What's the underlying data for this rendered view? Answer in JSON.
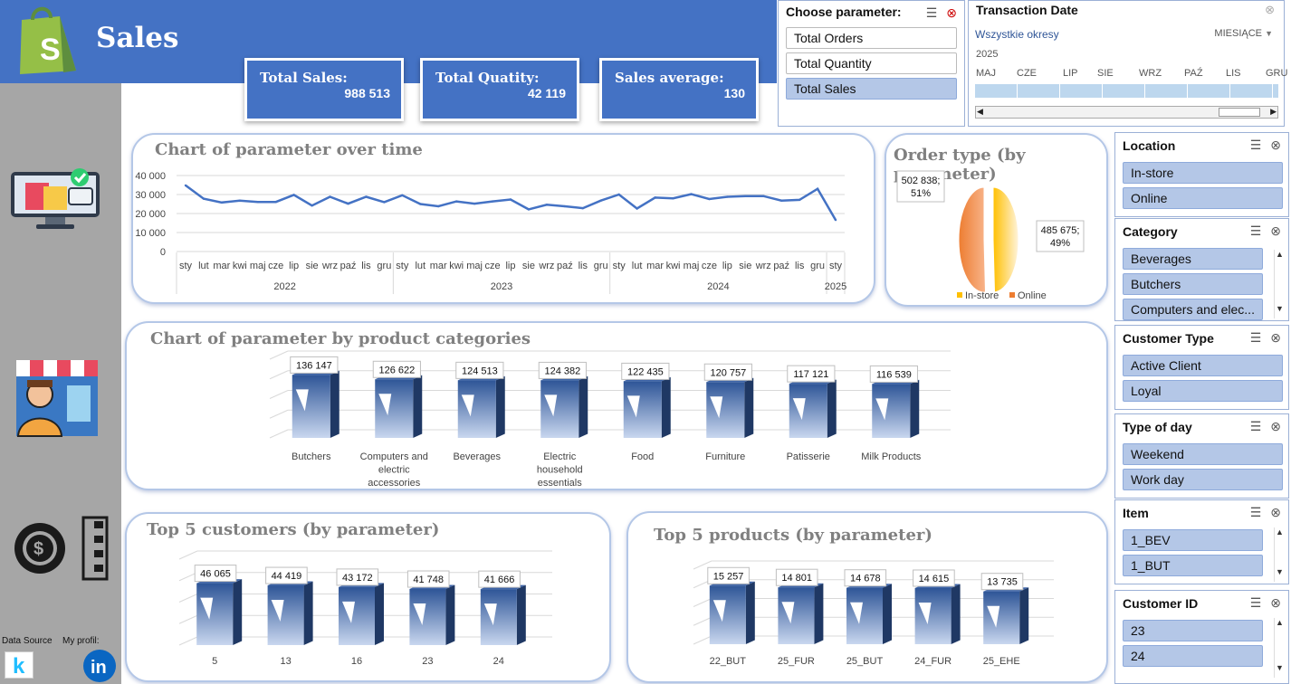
{
  "header": {
    "title": "Sales"
  },
  "kpis": [
    {
      "label": "Total Sales:",
      "value": "988 513"
    },
    {
      "label": "Total Quatity:",
      "value": "42 119"
    },
    {
      "label": "Sales average:",
      "value": "130"
    }
  ],
  "sidebar": {
    "data_source_label": "Data Source",
    "profile_label": "My profil:"
  },
  "param_slicer": {
    "title": "Choose parameter:",
    "items": [
      "Total Orders",
      "Total Quantity",
      "Total Sales"
    ],
    "selected": "Total Sales"
  },
  "timeline": {
    "title": "Transaction Date",
    "all_periods": "Wszystkie okresy",
    "level": "MIESIĄCE",
    "year": "2025",
    "months": [
      "MAJ",
      "CZE",
      "LIP",
      "SIE",
      "WRZ",
      "PAŹ",
      "LIS",
      "GRU"
    ]
  },
  "slicers": [
    {
      "title": "Location",
      "items": [
        "In-store",
        "Online"
      ]
    },
    {
      "title": "Category",
      "items": [
        "Beverages",
        "Butchers",
        "Computers and elec..."
      ]
    },
    {
      "title": "Customer Type",
      "items": [
        "Active Client",
        "Loyal"
      ]
    },
    {
      "title": "Type of day",
      "items": [
        "Weekend",
        "Work day"
      ]
    },
    {
      "title": "Item",
      "items": [
        "1_BEV",
        "1_BUT"
      ]
    },
    {
      "title": "Customer ID",
      "items": [
        "23",
        "24"
      ]
    }
  ],
  "chart_data": [
    {
      "type": "line",
      "title": "Chart of parameter over time",
      "y_ticks": [
        "40 000",
        "30 000",
        "20 000",
        "10 000",
        "0"
      ],
      "ylim": [
        0,
        40000
      ],
      "month_labels": [
        "sty",
        "lut",
        "mar",
        "kwi",
        "maj",
        "cze",
        "lip",
        "sie",
        "wrz",
        "paź",
        "lis",
        "gru",
        "sty",
        "lut",
        "mar",
        "kwi",
        "maj",
        "cze",
        "lip",
        "sie",
        "wrz",
        "paź",
        "lis",
        "gru",
        "sty",
        "lut",
        "mar",
        "kwi",
        "maj",
        "cze",
        "lip",
        "sie",
        "wrz",
        "paź",
        "lis",
        "gru",
        "sty"
      ],
      "year_labels": [
        "2022",
        "2023",
        "2024",
        "2025"
      ],
      "values": [
        34800,
        27800,
        25800,
        26800,
        26100,
        26100,
        29800,
        24200,
        28800,
        25200,
        28800,
        26000,
        29600,
        25000,
        23800,
        26400,
        25200,
        26400,
        27400,
        22200,
        24600,
        23800,
        22800,
        26800,
        30000,
        22600,
        28400,
        28000,
        30200,
        27600,
        28800,
        29200,
        29200,
        26800,
        27200,
        33000,
        16600
      ]
    },
    {
      "type": "pie",
      "title": "Order type (by parameter)",
      "slices": [
        {
          "name": "In-store",
          "value": 485675,
          "label": "485 675;\n49%",
          "color": "#ffc000"
        },
        {
          "name": "Online",
          "value": 502838,
          "label": "502 838;\n51%",
          "color": "#ed7d31"
        }
      ],
      "legend": [
        "In-store",
        "Online"
      ]
    },
    {
      "type": "bar",
      "title": "Chart of parameter by product categories",
      "categories": [
        "Butchers",
        "Computers and electric accessories",
        "Beverages",
        "Electric household essentials",
        "Food",
        "Furniture",
        "Patisserie",
        "Milk Products"
      ],
      "values": [
        136147,
        126622,
        124513,
        124382,
        122435,
        120757,
        117121,
        116539
      ],
      "labels": [
        "136 147",
        "126 622",
        "124 513",
        "124 382",
        "122 435",
        "120 757",
        "117 121",
        "116 539"
      ]
    },
    {
      "type": "bar",
      "title": "Top 5 customers (by parameter)",
      "categories": [
        "5",
        "13",
        "16",
        "23",
        "24"
      ],
      "values": [
        46065,
        44419,
        43172,
        41748,
        41666
      ],
      "labels": [
        "46 065",
        "44 419",
        "43 172",
        "41 748",
        "41 666"
      ]
    },
    {
      "type": "bar",
      "title": "Top 5 products (by parameter)",
      "categories": [
        "22_BUT",
        "25_FUR",
        "25_BUT",
        "24_FUR",
        "25_EHE"
      ],
      "values": [
        15257,
        14801,
        14678,
        14615,
        13735
      ],
      "labels": [
        "15 257",
        "14 801",
        "14 678",
        "14 615",
        "13 735"
      ]
    }
  ]
}
